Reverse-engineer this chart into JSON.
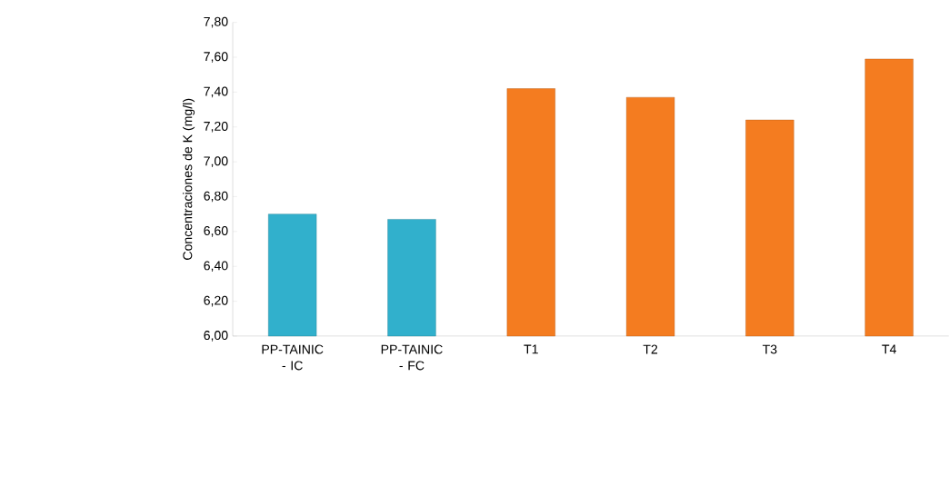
{
  "chart_data": {
    "type": "bar",
    "ylabel": "Concentraciones de K (mg/l)",
    "categories": [
      "PP-TAINIC - IC",
      "PP-TAINIC - FC",
      "T1",
      "T2",
      "T3",
      "T4"
    ],
    "values": [
      6.7,
      6.67,
      7.42,
      7.37,
      7.24,
      7.59
    ],
    "colors": [
      "#31b0cc",
      "#31b0cc",
      "#f47c20",
      "#f47c20",
      "#f47c20",
      "#f47c20"
    ],
    "ylim": [
      6.0,
      7.8
    ],
    "yticks": [
      {
        "value": 6.0,
        "label": "6,00"
      },
      {
        "value": 6.2,
        "label": "6,20"
      },
      {
        "value": 6.4,
        "label": "6,40"
      },
      {
        "value": 6.6,
        "label": "6,60"
      },
      {
        "value": 6.8,
        "label": "6,80"
      },
      {
        "value": 7.0,
        "label": "7,00"
      },
      {
        "value": 7.2,
        "label": "7,20"
      },
      {
        "value": 7.4,
        "label": "7,40"
      },
      {
        "value": 7.6,
        "label": "7,60"
      },
      {
        "value": 7.8,
        "label": "7,80"
      }
    ],
    "grid": false
  }
}
